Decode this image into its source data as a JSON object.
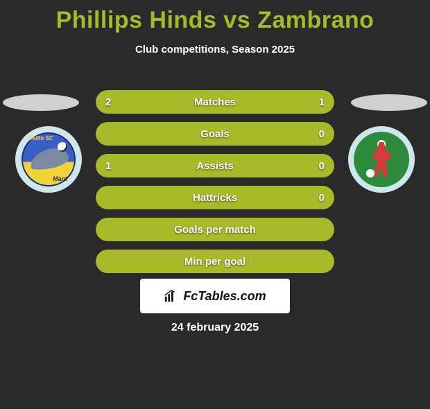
{
  "background_color": "#2a2a2a",
  "title": {
    "text": "Phillips Hinds vs Zambrano",
    "color": "#a8b92a",
    "fontsize": 34,
    "fontweight": 800
  },
  "subtitle": {
    "text": "Club competitions, Season 2025",
    "color": "#ffffff",
    "fontsize": 15
  },
  "side_ovals": {
    "left_color": "#d0d0d0",
    "right_color": "#d0d0d0"
  },
  "badges": {
    "left": {
      "bg": "#cfe6ed",
      "crest_top_color": "#3a5ec8",
      "crest_bottom_color": "#f2d43a",
      "text_top": "Delfin SC",
      "text_bottom": "Mant"
    },
    "right": {
      "bg": "#cfe6ed",
      "inner_bg": "#2e8b3e",
      "player_color": "#d83a3a"
    }
  },
  "bars": {
    "track_color": "#333333",
    "player1_color": "#a8b92a",
    "player2_color": "#a8b92a",
    "label_color": "#ffffff",
    "value_color": "#ffffff",
    "fontsize": 15,
    "rows": [
      {
        "label": "Matches",
        "left_value": "2",
        "right_value": "1",
        "left_pct": 66.7,
        "right_pct": 33.3
      },
      {
        "label": "Goals",
        "left_value": "",
        "right_value": "0",
        "left_pct": 100,
        "right_pct": 0
      },
      {
        "label": "Assists",
        "left_value": "1",
        "right_value": "0",
        "left_pct": 100,
        "right_pct": 0
      },
      {
        "label": "Hattricks",
        "left_value": "",
        "right_value": "0",
        "left_pct": 100,
        "right_pct": 0
      },
      {
        "label": "Goals per match",
        "left_value": "",
        "right_value": "",
        "left_pct": 100,
        "right_pct": 0
      },
      {
        "label": "Min per goal",
        "left_value": "",
        "right_value": "",
        "left_pct": 100,
        "right_pct": 0
      }
    ]
  },
  "logo": {
    "text": "FcTables.com",
    "bg": "#ffffff",
    "color": "#111111"
  },
  "date": {
    "text": "24 february 2025",
    "color": "#ffffff",
    "fontsize": 16
  }
}
